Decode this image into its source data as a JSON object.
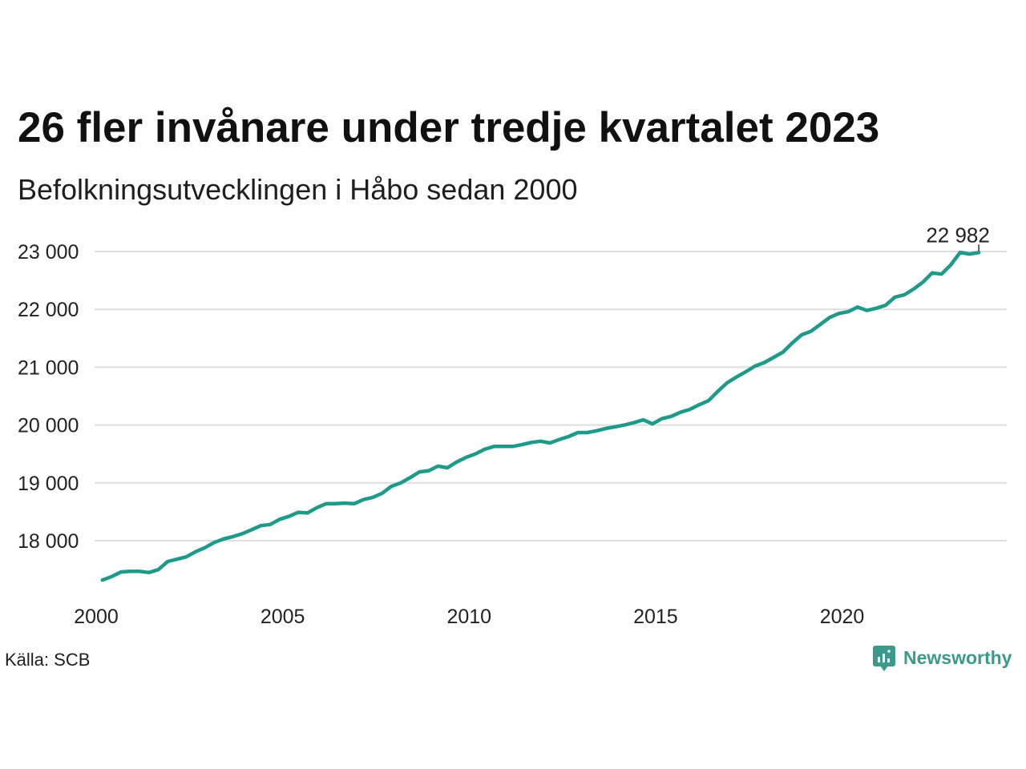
{
  "chart_data": {
    "type": "line",
    "title": "26 fler invånare under tredje kvartalet 2023",
    "subtitle": "Befolkningsutvecklingen i Håbo sedan 2000",
    "xlabel": "",
    "ylabel": "",
    "x": [
      "2000-03",
      "2000-06",
      "2000-09",
      "2000-12",
      "2001-03",
      "2001-06",
      "2001-09",
      "2001-12",
      "2002-03",
      "2002-06",
      "2002-09",
      "2002-12",
      "2003-03",
      "2003-06",
      "2003-09",
      "2003-12",
      "2004-03",
      "2004-06",
      "2004-09",
      "2004-12",
      "2005-03",
      "2005-06",
      "2005-09",
      "2005-12",
      "2006-03",
      "2006-06",
      "2006-09",
      "2006-12",
      "2007-03",
      "2007-06",
      "2007-09",
      "2007-12",
      "2008-03",
      "2008-06",
      "2008-09",
      "2008-12",
      "2009-03",
      "2009-06",
      "2009-09",
      "2009-12",
      "2010-03",
      "2010-06",
      "2010-09",
      "2010-12",
      "2011-03",
      "2011-06",
      "2011-09",
      "2011-12",
      "2012-03",
      "2012-06",
      "2012-09",
      "2012-12",
      "2013-03",
      "2013-06",
      "2013-09",
      "2013-12",
      "2014-03",
      "2014-06",
      "2014-09",
      "2014-12",
      "2015-03",
      "2015-06",
      "2015-09",
      "2015-12",
      "2016-03",
      "2016-06",
      "2016-09",
      "2016-12",
      "2017-03",
      "2017-06",
      "2017-09",
      "2017-12",
      "2018-03",
      "2018-06",
      "2018-09",
      "2018-12",
      "2019-03",
      "2019-06",
      "2019-09",
      "2019-12",
      "2020-03",
      "2020-06",
      "2020-09",
      "2020-12",
      "2021-03",
      "2021-06",
      "2021-09",
      "2021-12",
      "2022-03",
      "2022-06",
      "2022-09",
      "2022-12",
      "2023-03",
      "2023-06",
      "2023-09"
    ],
    "series": [
      {
        "values": [
          17320,
          17380,
          17460,
          17470,
          17470,
          17450,
          17500,
          17640,
          17680,
          17720,
          17810,
          17880,
          17970,
          18030,
          18070,
          18120,
          18190,
          18260,
          18280,
          18370,
          18420,
          18490,
          18480,
          18570,
          18640,
          18640,
          18650,
          18640,
          18710,
          18750,
          18820,
          18940,
          19000,
          19090,
          19190,
          19210,
          19290,
          19260,
          19360,
          19440,
          19500,
          19580,
          19630,
          19630,
          19630,
          19660,
          19700,
          19720,
          19690,
          19750,
          19800,
          19870,
          19870,
          19900,
          19940,
          19970,
          20000,
          20040,
          20090,
          20020,
          20110,
          20150,
          20220,
          20270,
          20350,
          20420,
          20580,
          20730,
          20830,
          20920,
          21020,
          21080,
          21170,
          21260,
          21420,
          21560,
          21620,
          21740,
          21860,
          21930,
          21960,
          22040,
          21980,
          22020,
          22070,
          22210,
          22250,
          22350,
          22470,
          22630,
          22610,
          22770,
          22985,
          22956,
          22982
        ]
      }
    ],
    "xlim": [
      "2000-01",
      "2024-06"
    ],
    "ylim": [
      17000,
      23000
    ],
    "x_ticks": [
      "2000",
      "2005",
      "2010",
      "2015",
      "2020"
    ],
    "y_ticks": [
      18000,
      19000,
      20000,
      21000,
      22000,
      23000
    ],
    "y_tick_labels": [
      "18 000",
      "19 000",
      "20 000",
      "21 000",
      "22 000",
      "23 000"
    ],
    "annotation": {
      "label": "22 982",
      "x": "2023-09",
      "y": 22982
    },
    "grid": "horizontal",
    "legend": null,
    "color": "#1d9a89",
    "grid_color": "#dedede"
  },
  "source": "Källa: SCB",
  "brand": {
    "name": "Newsworthy",
    "icon": "newsworthy-logo-icon",
    "color": "#3b9a8b"
  }
}
